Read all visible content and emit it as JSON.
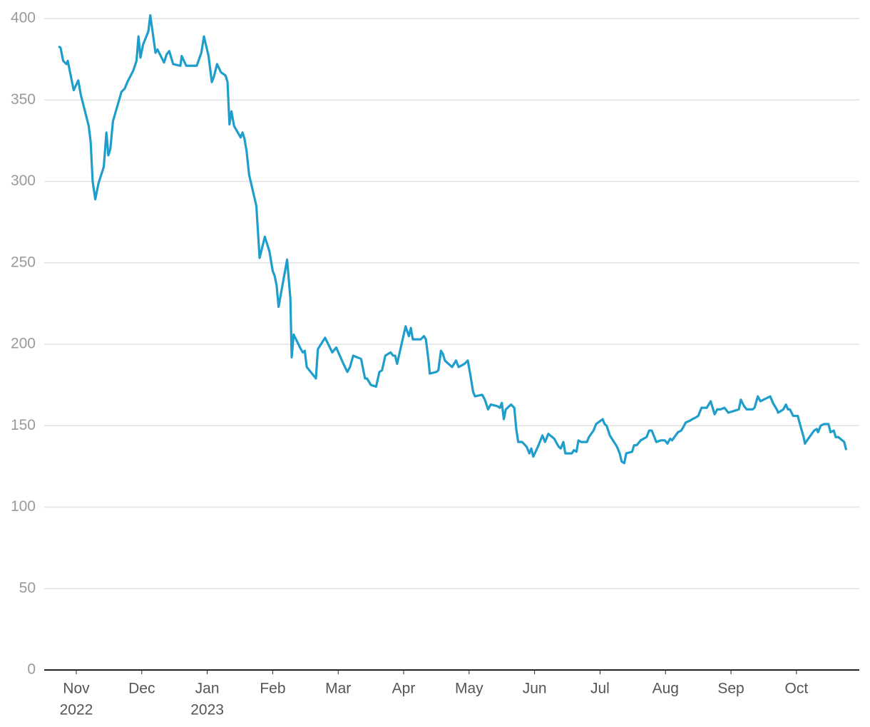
{
  "chart_data": {
    "type": "line",
    "x": [
      -0.27,
      -0.24,
      -0.2,
      -0.15,
      -0.13,
      -0.04,
      0.03,
      0.07,
      0.19,
      0.22,
      0.25,
      0.29,
      0.34,
      0.42,
      0.46,
      0.49,
      0.52,
      0.56,
      0.64,
      0.69,
      0.74,
      0.78,
      0.87,
      0.92,
      0.95,
      0.98,
      1.02,
      1.1,
      1.13,
      1.21,
      1.24,
      1.34,
      1.38,
      1.42,
      1.48,
      1.59,
      1.61,
      1.68,
      1.84,
      1.91,
      1.95,
      2.02,
      2.07,
      2.1,
      2.15,
      2.21,
      2.28,
      2.31,
      2.34,
      2.37,
      2.41,
      2.51,
      2.54,
      2.57,
      2.6,
      2.64,
      2.75,
      2.8,
      2.88,
      2.95,
      3.0,
      3.03,
      3.06,
      3.09,
      3.22,
      3.27,
      3.29,
      3.32,
      3.43,
      3.46,
      3.49,
      3.52,
      3.62,
      3.66,
      3.69,
      3.8,
      3.91,
      3.97,
      4.08,
      4.14,
      4.18,
      4.23,
      4.35,
      4.41,
      4.44,
      4.5,
      4.58,
      4.63,
      4.67,
      4.72,
      4.8,
      4.84,
      4.87,
      4.9,
      5.03,
      5.08,
      5.11,
      5.14,
      5.26,
      5.31,
      5.34,
      5.38,
      5.4,
      5.5,
      5.53,
      5.57,
      5.6,
      5.63,
      5.74,
      5.8,
      5.84,
      5.93,
      5.98,
      6.02,
      6.06,
      6.09,
      6.2,
      6.24,
      6.29,
      6.33,
      6.43,
      6.47,
      6.5,
      6.53,
      6.56,
      6.64,
      6.69,
      6.72,
      6.75,
      6.81,
      6.88,
      6.92,
      6.95,
      6.98,
      7.05,
      7.12,
      7.16,
      7.21,
      7.3,
      7.37,
      7.4,
      7.44,
      7.47,
      7.57,
      7.6,
      7.64,
      7.67,
      7.71,
      7.8,
      7.83,
      7.9,
      7.94,
      8.04,
      8.07,
      8.1,
      8.15,
      8.26,
      8.3,
      8.33,
      8.37,
      8.4,
      8.49,
      8.52,
      8.56,
      8.62,
      8.71,
      8.75,
      8.79,
      8.86,
      8.93,
      8.99,
      9.03,
      9.07,
      9.1,
      9.19,
      9.24,
      9.27,
      9.31,
      9.37,
      9.41,
      9.46,
      9.5,
      9.55,
      9.63,
      9.69,
      9.75,
      9.79,
      9.84,
      9.9,
      9.92,
      9.96,
      10.04,
      10.12,
      10.15,
      10.2,
      10.24,
      10.33,
      10.36,
      10.41,
      10.45,
      10.6,
      10.64,
      10.7,
      10.72,
      10.8,
      10.84,
      10.87,
      10.9,
      10.95,
      11.02,
      11.06,
      11.11,
      11.13,
      11.18,
      11.27,
      11.31,
      11.33,
      11.37,
      11.42,
      11.49,
      11.52,
      11.57,
      11.6,
      11.64,
      11.73,
      11.76
    ],
    "values": [
      383,
      382,
      374,
      372,
      374,
      356,
      362,
      353,
      334,
      324,
      300,
      289,
      299,
      309,
      330,
      316,
      320,
      337,
      348,
      355,
      357,
      361,
      368,
      374,
      389,
      376,
      384,
      392,
      402,
      379,
      381,
      373,
      378,
      380,
      372,
      371,
      377,
      371,
      371,
      379,
      389,
      377,
      361,
      364,
      372,
      367,
      365,
      361,
      335,
      343,
      334,
      327,
      330,
      326,
      319,
      304,
      285,
      253,
      266,
      257,
      245,
      242,
      236,
      223,
      252,
      228,
      192,
      206,
      197,
      195,
      196,
      186,
      181,
      179,
      197,
      204,
      195,
      198,
      188,
      183,
      186,
      193,
      191,
      179,
      179,
      175,
      174,
      183,
      184,
      193,
      195,
      193,
      193,
      188,
      211,
      205,
      210,
      203,
      203,
      205,
      203,
      190,
      182,
      183,
      184,
      196,
      194,
      190,
      186,
      190,
      186,
      188,
      190,
      181,
      171,
      168,
      169,
      166,
      160,
      163,
      162,
      161,
      164,
      154,
      160,
      163,
      161,
      148,
      140,
      140,
      137,
      133,
      136,
      131,
      137,
      144,
      140,
      145,
      142,
      137,
      136,
      140,
      133,
      133,
      135,
      134,
      141,
      140,
      140,
      143,
      147,
      151,
      154,
      151,
      150,
      144,
      137,
      133,
      128,
      127,
      133,
      134,
      138,
      138,
      141,
      143,
      147,
      147,
      140,
      141,
      141,
      139,
      142,
      141,
      146,
      147,
      149,
      152,
      153,
      154,
      155,
      156,
      161,
      161,
      165,
      157,
      160,
      160,
      161,
      160,
      158,
      159,
      160,
      166,
      162,
      160,
      160,
      161,
      168,
      165,
      168,
      164,
      160,
      158,
      160,
      163,
      160,
      160,
      156,
      156,
      150,
      143,
      139,
      142,
      147,
      148,
      146,
      150,
      151,
      151,
      146,
      147,
      143,
      143,
      140,
      135
    ],
    "color": "#1f9ecb",
    "xlim": [
      -0.49,
      11.96
    ],
    "xticks": [
      {
        "value": 0,
        "label": "Nov",
        "year": "2022"
      },
      {
        "value": 1,
        "label": "Dec"
      },
      {
        "value": 2,
        "label": "Jan",
        "year": "2023"
      },
      {
        "value": 3,
        "label": "Feb"
      },
      {
        "value": 4,
        "label": "Mar"
      },
      {
        "value": 5,
        "label": "Apr"
      },
      {
        "value": 6,
        "label": "May"
      },
      {
        "value": 7,
        "label": "Jun"
      },
      {
        "value": 8,
        "label": "Jul"
      },
      {
        "value": 9,
        "label": "Aug"
      },
      {
        "value": 10,
        "label": "Sep"
      },
      {
        "value": 11,
        "label": "Oct"
      }
    ],
    "ylim": [
      0,
      400
    ],
    "yticks": [
      0,
      50,
      100,
      150,
      200,
      250,
      300,
      350,
      400
    ],
    "grid": true
  }
}
